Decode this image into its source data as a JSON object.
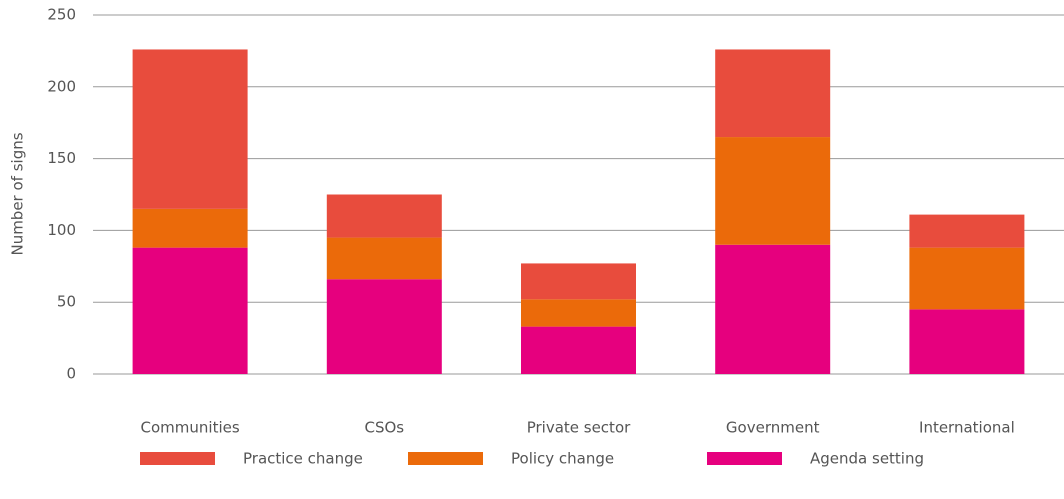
{
  "chart_data": {
    "type": "stacked-bar",
    "y_label": "Number of signs",
    "categories": [
      "Communities",
      "CSOs",
      "Private sector",
      "Government",
      "International"
    ],
    "series": [
      {
        "name": "Practice change",
        "color": "#e84c3d",
        "values": [
          111,
          30,
          25,
          61,
          23
        ]
      },
      {
        "name": "Policy change",
        "color": "#eb6a0a",
        "values": [
          27,
          29,
          19,
          75,
          43
        ]
      },
      {
        "name": "Agenda setting",
        "color": "#e6007e",
        "values": [
          88,
          66,
          33,
          90,
          45
        ]
      }
    ],
    "ylim": [
      0,
      250
    ],
    "yticks": [
      0,
      50,
      100,
      150,
      200,
      250
    ],
    "grid": true,
    "legend": "bottom"
  }
}
